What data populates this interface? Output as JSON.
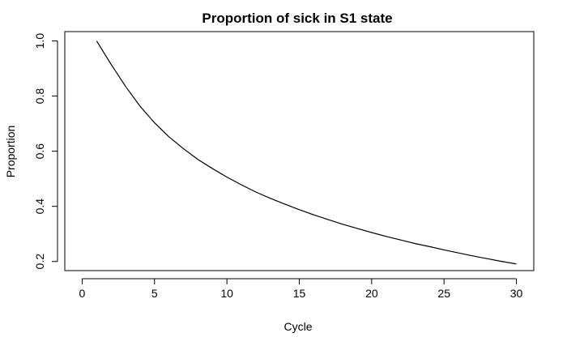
{
  "chart_data": {
    "type": "line",
    "title": "Proportion of sick in S1 state",
    "xlabel": "Cycle",
    "ylabel": "Proportion",
    "xlim": [
      -1.2,
      31.2
    ],
    "ylim": [
      0.1669,
      1.0339
    ],
    "xticks": [
      0,
      5,
      10,
      15,
      20,
      25,
      30
    ],
    "yticks": [
      0.2,
      0.4,
      0.6,
      0.8,
      1.0
    ],
    "xtick_labels": [
      "0",
      "5",
      "10",
      "15",
      "20",
      "25",
      "30"
    ],
    "ytick_labels": [
      "0.2",
      "0.4",
      "0.6",
      "0.8",
      "1.0"
    ],
    "grid": false,
    "legend": "none",
    "line_color": "#000000",
    "series": [
      {
        "x": [
          1,
          2,
          3,
          4,
          5,
          6,
          7,
          8,
          9,
          10,
          11,
          12,
          13,
          14,
          15,
          16,
          17,
          18,
          19,
          20,
          21,
          22,
          23,
          24,
          25,
          26,
          27,
          28,
          29,
          30
        ],
        "values": [
          1.0,
          0.915,
          0.835,
          0.763,
          0.703,
          0.652,
          0.609,
          0.57,
          0.537,
          0.506,
          0.478,
          0.452,
          0.429,
          0.408,
          0.388,
          0.369,
          0.352,
          0.335,
          0.32,
          0.305,
          0.291,
          0.278,
          0.265,
          0.254,
          0.242,
          0.231,
          0.22,
          0.21,
          0.2,
          0.191
        ]
      }
    ]
  }
}
